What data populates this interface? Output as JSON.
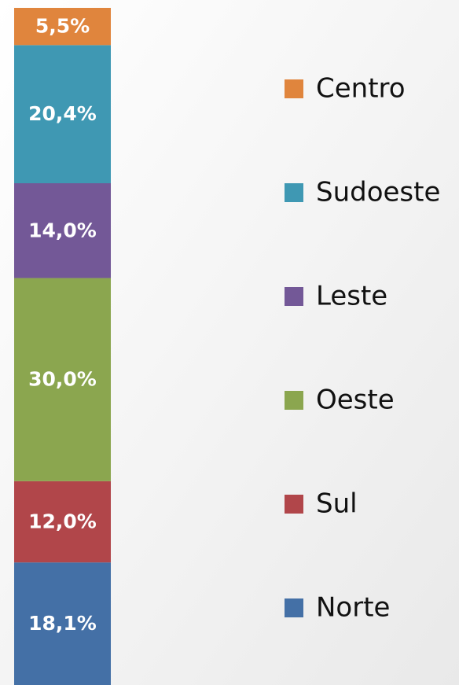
{
  "chart_data": {
    "type": "stacked_bar",
    "series": [
      {
        "name": "Norte",
        "color": "#4470a6",
        "values": [
          18.1
        ],
        "value_labels": [
          "18,1%"
        ]
      },
      {
        "name": "Sul",
        "color": "#b1464a",
        "values": [
          12.0
        ],
        "value_labels": [
          "12,0%"
        ]
      },
      {
        "name": "Oeste",
        "color": "#8ba64f",
        "values": [
          30.0
        ],
        "value_labels": [
          "30,0%"
        ]
      },
      {
        "name": "Leste",
        "color": "#735897",
        "values": [
          14.0
        ],
        "value_labels": [
          "14,0%"
        ]
      },
      {
        "name": "Sudoeste",
        "color": "#3f98b3",
        "values": [
          20.4
        ],
        "value_labels": [
          "20,4%"
        ]
      },
      {
        "name": "Centro",
        "color": "#e0853d",
        "values": [
          5.5
        ],
        "value_labels": [
          "5,5%"
        ]
      }
    ],
    "ylim": [
      0,
      100
    ],
    "legend": "right"
  }
}
